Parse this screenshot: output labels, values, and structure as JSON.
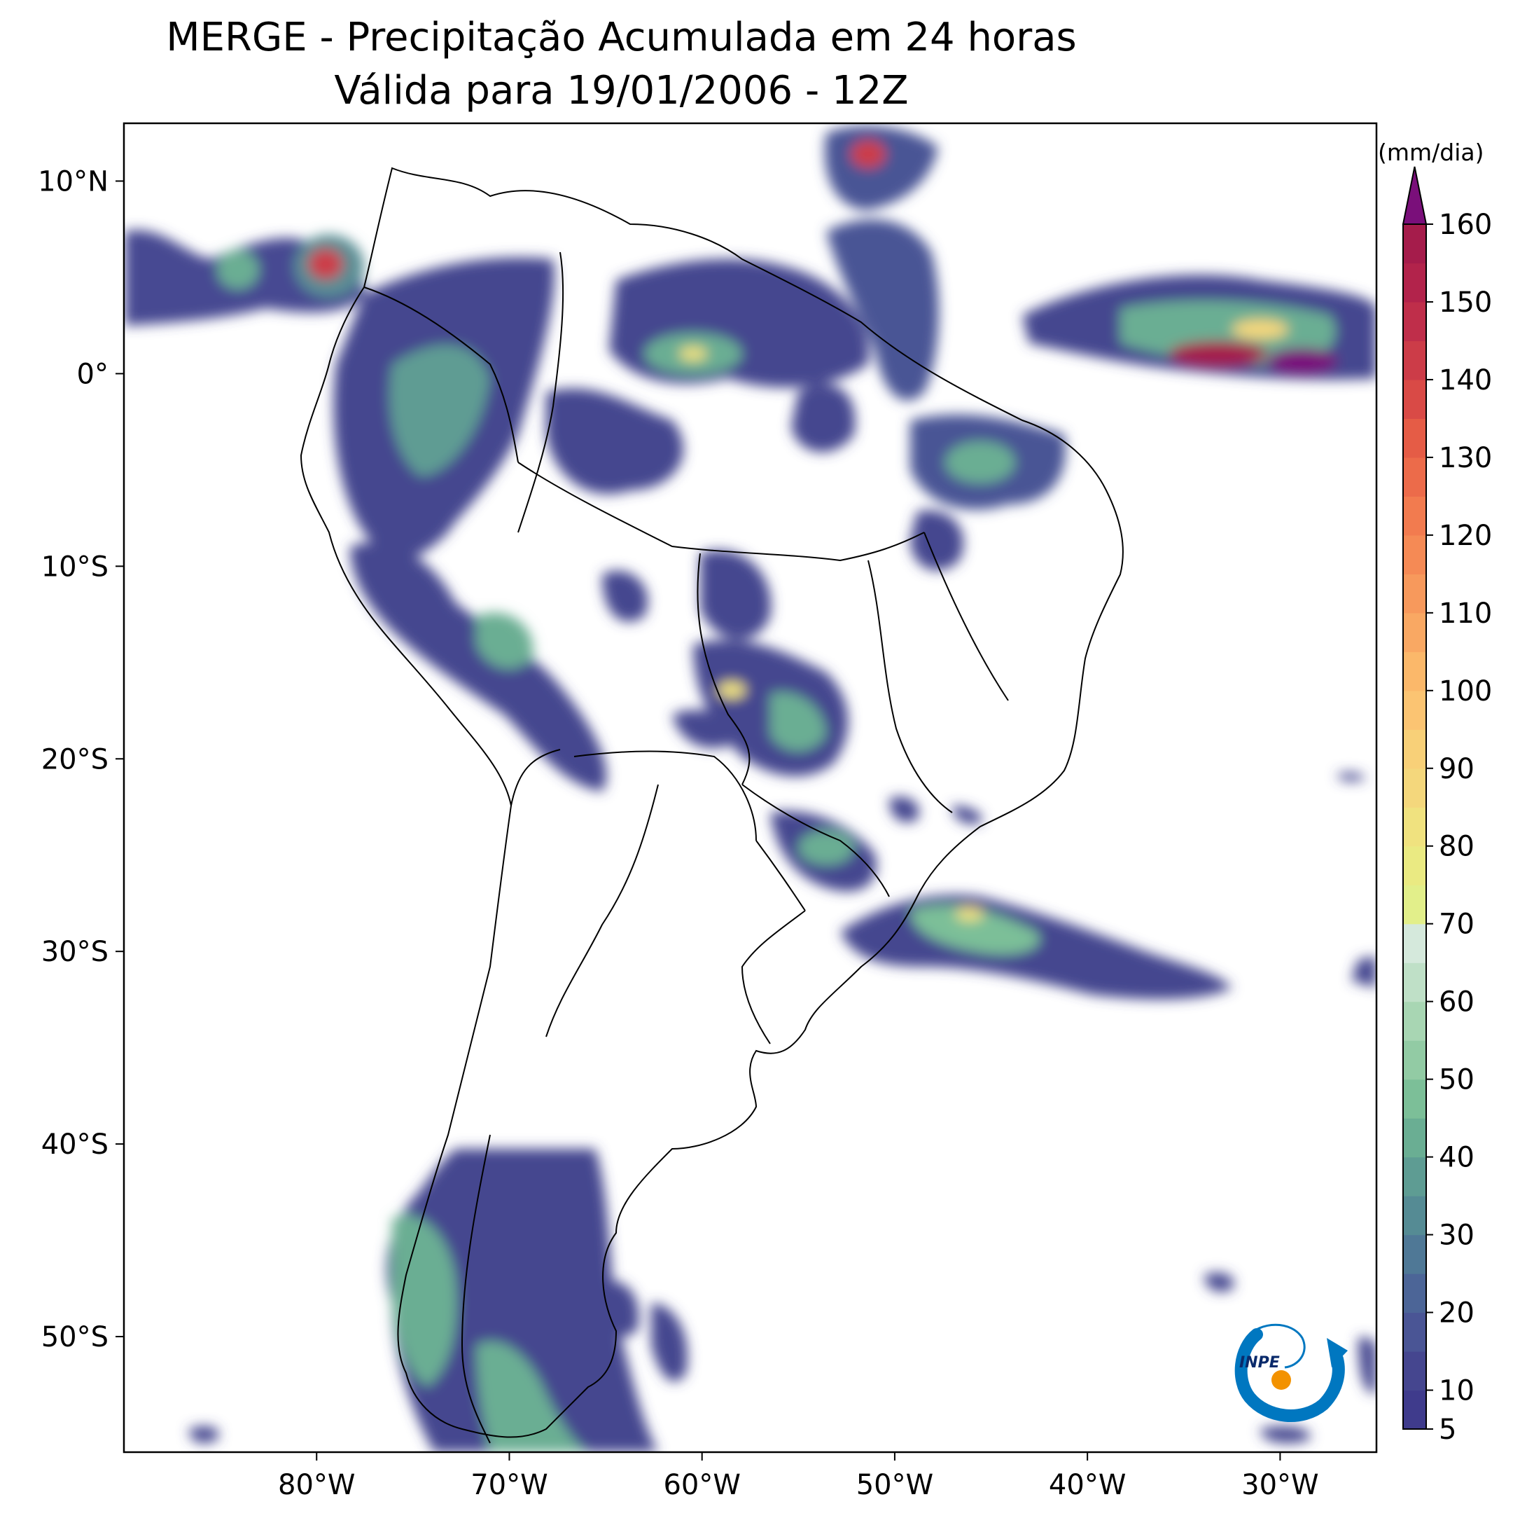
{
  "title": {
    "line1": "MERGE - Precipitação Acumulada em 24 horas",
    "line2": "Válida para 19/01/2006 - 12Z"
  },
  "map": {
    "lon_range": [
      -90,
      -25
    ],
    "lat_range": [
      -56,
      13
    ],
    "lat_ticks": [
      {
        "value": 10,
        "label": "10°N"
      },
      {
        "value": 0,
        "label": "0°"
      },
      {
        "value": -10,
        "label": "10°S"
      },
      {
        "value": -20,
        "label": "20°S"
      },
      {
        "value": -30,
        "label": "30°S"
      },
      {
        "value": -40,
        "label": "40°S"
      },
      {
        "value": -50,
        "label": "50°S"
      }
    ],
    "lon_ticks": [
      {
        "value": -80,
        "label": "80°W"
      },
      {
        "value": -70,
        "label": "70°W"
      },
      {
        "value": -60,
        "label": "60°W"
      },
      {
        "value": -50,
        "label": "50°W"
      },
      {
        "value": -40,
        "label": "40°W"
      },
      {
        "value": -30,
        "label": "30°W"
      }
    ]
  },
  "colorbar": {
    "unit": "(mm/dia)",
    "min": 5,
    "max": 160,
    "extend": "max",
    "extend_color": "#7a0f7a",
    "levels": [
      5,
      10,
      15,
      20,
      25,
      30,
      35,
      40,
      45,
      50,
      55,
      60,
      65,
      70,
      75,
      80,
      85,
      90,
      95,
      100,
      105,
      110,
      115,
      120,
      125,
      130,
      135,
      140,
      145,
      150,
      155,
      160
    ],
    "colors": [
      "#3f3b8c",
      "#45468f",
      "#4a5595",
      "#4c6597",
      "#4f7896",
      "#558b94",
      "#5e9c93",
      "#6aae93",
      "#7cbf98",
      "#92cba4",
      "#a8d6b3",
      "#bfe0c7",
      "#d5e9dc",
      "#e2ef8a",
      "#eaea82",
      "#f0e27f",
      "#f4d77c",
      "#f8d078",
      "#fbc472",
      "#fbb86a",
      "#f9a863",
      "#f7995c",
      "#f58a55",
      "#f27b4f",
      "#ec6b4a",
      "#e55c46",
      "#d94a46",
      "#cc3c48",
      "#bf2e4a",
      "#b2234b",
      "#a51c4b"
    ],
    "tick_labels": [
      "5",
      "10",
      "20",
      "30",
      "40",
      "50",
      "60",
      "70",
      "80",
      "90",
      "100",
      "110",
      "120",
      "130",
      "140",
      "150",
      "160"
    ]
  },
  "logo": {
    "text": "INPE"
  }
}
